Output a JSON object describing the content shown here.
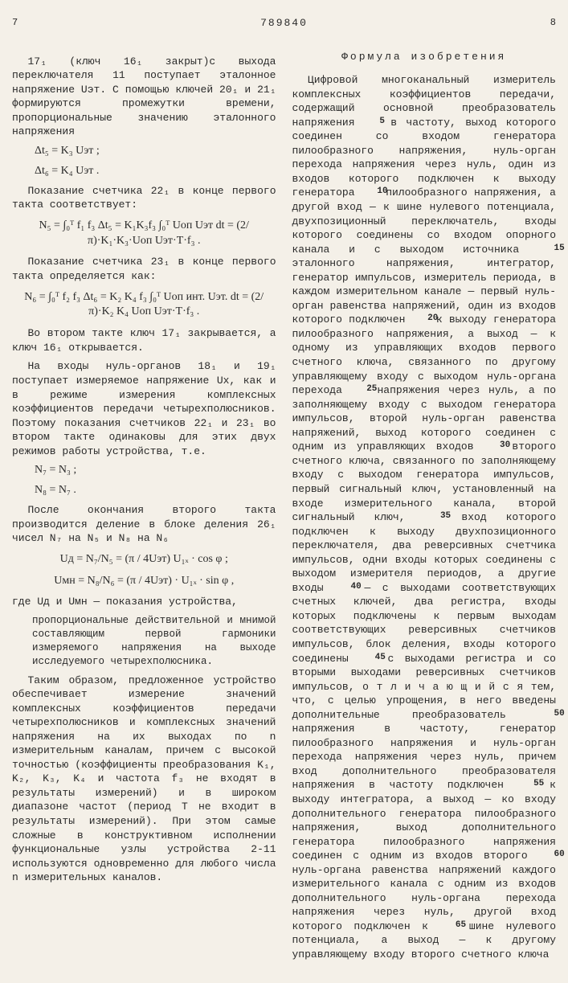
{
  "docNumber": "789840",
  "leftPageNum": "7",
  "rightPageNum": "8",
  "left": {
    "p1": "17₁ (ключ 16₁ закрыт)с выхода переключателя 11 поступает эталонное напряжение Uэт. С помощью ключей 20₁ и 21₁ формируются промежутки времени, пропорциональные значению эталонного напряжения",
    "f1a": "Δt₅ = K₃ Uэт ;",
    "f1b": "Δt₆ = K₄ Uэт .",
    "p2": "Показание счетчика 22₁ в конце первого такта соответствует:",
    "f2": "N₅ = ∫₀ᵀ f₁ f₃ Δt₅ = K₁K₃f₃ ∫₀ᵀ Uоп Uэт dt = (2/π)·K₁·K₃·Uоп Uэт·T·f₃ .",
    "p3": "Показание счетчика 23₁ в конце первого такта определяется как:",
    "f3": "N₆ = ∫₀ᵀ f₂ f₃ Δt₆ = K₂ K₄ f₃ ∫₀ᵀ Uоп инт. Uэт. dt = (2/π)·K₂ K₄ Uоп Uэт·T·f₃ .",
    "p4": "Во втором такте ключ 17₁ закрывается, а ключ 16₁ открывается.",
    "p5": "На входы нуль-органов 18₁ и 19₁ поступает измеряемое напряжение Uх, как и в режиме измерения комплексных коэффициентов передачи четырехполюсников. Поэтому показания счетчиков 22₁ и 23₁ во втором такте одинаковы для этих двух режимов работы устройства, т.е.",
    "f4a": "N₇ = N₃ ;",
    "f4b": "N₈ = N₇ .",
    "p6": "После окончания второго такта производится деление в блоке деления 26₁ чисел N₇ на N₅ и N₈ на N₆",
    "f5a": "Uд = N₇/N₅ = (π / 4Uэт) U₁ₓ · cos φ ;",
    "f5b": "Uмн = N₈/N₆ = (π / 4Uэт) · U₁ₓ · sin φ ,",
    "p7pre": "где Uд и Uмн — показания устройства,",
    "p7body": "пропорциональные действительной и мнимой составляющим первой гармоники измеряемого напряжения на выходе исследуемого четырехполюсника.",
    "p8": "Таким образом, предложенное устройство обеспечивает измерение значений комплексных коэффициентов передачи четырехполюсников и комплексных значений напряжения на их выходах по n измерительным каналам, причем с высокой точностью (коэффициенты преобразования K₁, K₂, K₃, K₄ и частота f₃ не входят в результаты измерений) и в широком диапазоне частот (период Т не входит в результаты измерений). При этом самые сложные в конструктивном исполнении функциональные узлы устройства 2-11 используются одновременно для любого числа n измерительных каналов."
  },
  "right": {
    "title": "Формула изобретения",
    "body": "Цифровой многоканальный измеритель комплексных коэффициентов передачи, содержащий основной преобразователь напряжения в частоту, выход которого соединен со входом генератора пилообразного напряжения, нуль-орган перехода напряжения через нуль, один из входов которого подключен к выходу генератора пилообразного напряжения, а другой вход — к шине нулевого потенциала, двухпозиционный переключатель, входы которого соединены со входом опорного канала и с выходом источника эталонного напряжения, интегратор, генератор импульсов, измеритель периода, в каждом измерительном канале — первый нуль-орган равенства напряжений, один из входов которого подключен к выходу генератора пилообразного напряжения, а выход — к одному из управляющих входов первого счетного ключа, связанного по другому управляющему входу с выходом нуль-органа перехода напряжения через нуль, а по заполняющему входу с выходом генератора импульсов, второй нуль-орган равенства напряжений, выход которого соединен с одним из управляющих входов второго счетного ключа, связанного по заполняющему входу с выходом генератора импульсов, первый сигнальный ключ, установленный на входе измерительного канала, второй сигнальный ключ, вход которого подключен к выходу двухпозиционного переключателя, два реверсивных счетчика импульсов, одни входы которых соединены с выходом измерителя периодов, а другие входы — с выходами соответствующих счетных ключей, два регистра, входы которых подключены к первым выходам соответствующих реверсивных счетчиков импульсов, блок деления, входы которого соединены с выходами регистра и со вторыми выходами реверсивных счетчиков импульсов, о т л и ч а ю щ и й с я тем, что, с целью упрощения, в него введены дополнительные преобразователь напряжения в частоту, генератор пилообразного напряжения и нуль-орган перехода напряжения через нуль, причем вход дополнительного преобразователя напряжения в частоту подключен к выходу интегратора, а выход — ко входу дополнительного генератора пилообразного напряжения, выход дополнительного генератора пилообразного напряжения соединен с одним из входов второго нуль-органа равенства напряжений каждого измерительного канала с одним из входов дополнительного нуль-органа перехода напряжения через нуль, другой вход которого подключен к шине нулевого потенциала, а выход — к другому управляющему входу второго счетного ключа",
    "lineMarks": [
      "5",
      "10",
      "15",
      "20",
      "25",
      "30",
      "35",
      "40",
      "45",
      "50",
      "55",
      "60",
      "65"
    ]
  }
}
